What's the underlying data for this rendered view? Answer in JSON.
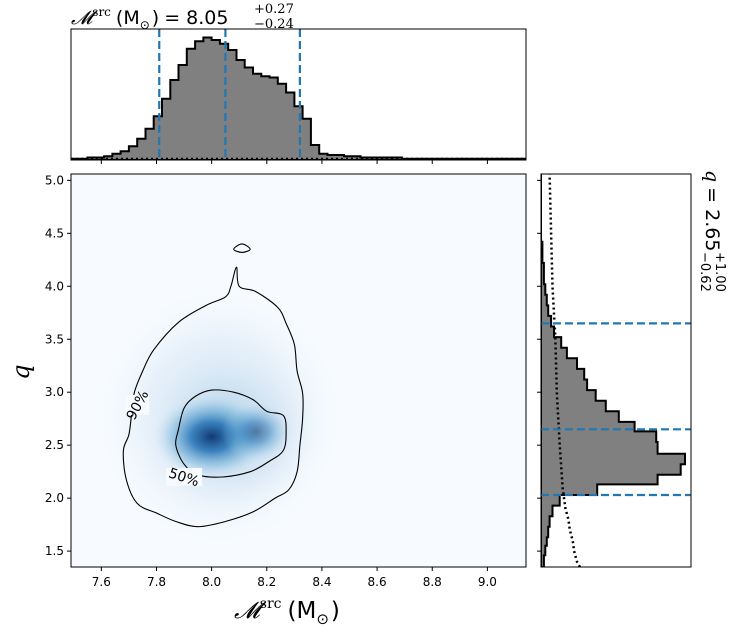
{
  "chart_data": {
    "type": "corner-2d-posterior",
    "xlabel_symbol": "𝓜",
    "xlabel_sup": "src",
    "xlabel_unit": "(M",
    "xlabel_unit_sub": "⊙",
    "xlabel_unit_close": ")",
    "ylabel": "q",
    "xlim": [
      7.49,
      9.14
    ],
    "ylim": [
      1.35,
      5.06
    ],
    "x_ticks": [
      7.6,
      7.8,
      8.0,
      8.2,
      8.4,
      8.6,
      8.8,
      9.0
    ],
    "x_tick_labels": [
      "7.6",
      "7.8",
      "8.0",
      "8.2",
      "8.4",
      "8.6",
      "8.8",
      "9.0"
    ],
    "y_ticks": [
      1.5,
      2.0,
      2.5,
      3.0,
      3.5,
      4.0,
      4.5,
      5.0
    ],
    "y_tick_labels": [
      "1.5",
      "2.0",
      "2.5",
      "3.0",
      "3.5",
      "4.0",
      "4.5",
      "5.0"
    ],
    "top_annotation": {
      "prefix": "𝓜",
      "sup": "src",
      "unit": "(M",
      "unit_sub": "⊙",
      "unit_close": ")",
      "value": "= 8.05",
      "plus": "+0.27",
      "minus": "−0.24"
    },
    "right_annotation": {
      "prefix": "q",
      "value": "= 2.65",
      "plus": "+1.00",
      "minus": "−0.62"
    },
    "contour_labels": [
      "90%",
      "50%"
    ],
    "chirp_mass_quantiles": [
      7.81,
      8.05,
      8.32
    ],
    "mass_ratio_quantiles": [
      2.03,
      2.65,
      3.65
    ],
    "chirp_mass_histogram": {
      "edges": [
        7.49,
        7.52,
        7.55,
        7.58,
        7.61,
        7.64,
        7.67,
        7.7,
        7.73,
        7.76,
        7.79,
        7.82,
        7.85,
        7.88,
        7.91,
        7.94,
        7.97,
        8.0,
        8.03,
        8.06,
        8.09,
        8.12,
        8.15,
        8.18,
        8.21,
        8.24,
        8.27,
        8.3,
        8.33,
        8.36,
        8.39,
        8.42,
        8.45,
        8.48,
        8.51,
        8.54,
        8.57,
        8.6,
        8.63,
        8.66,
        8.69,
        8.72,
        8.75,
        8.78,
        8.81,
        8.84,
        8.87,
        8.9,
        8.93,
        8.96,
        8.99,
        9.02,
        9.05,
        9.08,
        9.11,
        9.14
      ],
      "density": [
        0.01,
        0.01,
        0.02,
        0.02,
        0.03,
        0.05,
        0.07,
        0.11,
        0.17,
        0.25,
        0.35,
        0.49,
        0.64,
        0.76,
        0.89,
        0.95,
        0.98,
        0.96,
        0.93,
        0.88,
        0.8,
        0.74,
        0.69,
        0.67,
        0.66,
        0.61,
        0.54,
        0.43,
        0.33,
        0.12,
        0.05,
        0.04,
        0.04,
        0.03,
        0.03,
        0.02,
        0.02,
        0.02,
        0.02,
        0.02,
        0.01,
        0.01,
        0.01,
        0.01,
        0.01,
        0.01,
        0.01,
        0.01,
        0.01,
        0.01,
        0.01,
        0.01,
        0.01,
        0.01,
        0.01
      ],
      "prior_density_level": 0.01
    },
    "mass_ratio_histogram": {
      "edges": [
        1.35,
        1.46,
        1.55,
        1.63,
        1.73,
        1.83,
        1.93,
        2.03,
        2.13,
        2.22,
        2.32,
        2.42,
        2.53,
        2.63,
        2.72,
        2.82,
        2.92,
        3.02,
        3.12,
        3.22,
        3.32,
        3.42,
        3.52,
        3.62,
        3.72,
        3.82,
        3.92,
        4.02,
        4.12,
        4.22,
        4.32,
        4.42,
        4.52,
        4.62,
        4.72,
        4.82,
        4.92,
        5.06
      ],
      "density": [
        0.02,
        0.03,
        0.04,
        0.05,
        0.06,
        0.08,
        0.13,
        0.39,
        0.81,
        0.97,
        1.0,
        0.81,
        0.8,
        0.65,
        0.54,
        0.45,
        0.38,
        0.32,
        0.3,
        0.25,
        0.18,
        0.14,
        0.09,
        0.07,
        0.05,
        0.04,
        0.03,
        0.02,
        0.02,
        0.01,
        0.01,
        0.0,
        0.0,
        0.0,
        0.0,
        0.0,
        0.0
      ],
      "prior_curve": [
        [
          1.35,
          0.27
        ],
        [
          1.4,
          0.25
        ],
        [
          1.5,
          0.23
        ],
        [
          1.6,
          0.22
        ],
        [
          1.7,
          0.2
        ],
        [
          1.8,
          0.19
        ],
        [
          1.9,
          0.17
        ],
        [
          2.0,
          0.16
        ],
        [
          2.1,
          0.15
        ],
        [
          2.3,
          0.14
        ],
        [
          2.5,
          0.13
        ],
        [
          3.0,
          0.11
        ],
        [
          3.5,
          0.1
        ],
        [
          4.0,
          0.08
        ],
        [
          4.5,
          0.07
        ],
        [
          5.06,
          0.06
        ]
      ]
    },
    "posterior_2d": {
      "peak": [
        8.0,
        2.58
      ],
      "contour_90": [
        [
          7.79,
          3.4
        ],
        [
          7.88,
          3.66
        ],
        [
          7.98,
          3.82
        ],
        [
          8.05,
          3.9
        ],
        [
          8.07,
          4.0
        ],
        [
          8.09,
          4.18
        ],
        [
          8.1,
          4.0
        ],
        [
          8.16,
          3.95
        ],
        [
          8.24,
          3.8
        ],
        [
          8.27,
          3.65
        ],
        [
          8.3,
          3.45
        ],
        [
          8.31,
          3.2
        ],
        [
          8.33,
          2.99
        ],
        [
          8.33,
          2.75
        ],
        [
          8.32,
          2.5
        ],
        [
          8.31,
          2.25
        ],
        [
          8.28,
          2.08
        ],
        [
          8.23,
          2.0
        ],
        [
          8.15,
          1.87
        ],
        [
          8.05,
          1.78
        ],
        [
          7.95,
          1.73
        ],
        [
          7.87,
          1.78
        ],
        [
          7.8,
          1.86
        ],
        [
          7.73,
          1.95
        ],
        [
          7.69,
          2.18
        ],
        [
          7.68,
          2.45
        ],
        [
          7.7,
          2.6
        ],
        [
          7.71,
          2.8
        ],
        [
          7.72,
          3.0
        ],
        [
          7.75,
          3.2
        ]
      ],
      "contour_90_island": [
        [
          8.08,
          4.35
        ],
        [
          8.11,
          4.4
        ],
        [
          8.14,
          4.35
        ],
        [
          8.11,
          4.32
        ]
      ],
      "contour_50": [
        [
          7.87,
          2.5
        ],
        [
          7.88,
          2.65
        ],
        [
          7.9,
          2.85
        ],
        [
          7.94,
          2.96
        ],
        [
          8.0,
          3.02
        ],
        [
          8.08,
          3.0
        ],
        [
          8.15,
          2.93
        ],
        [
          8.2,
          2.82
        ],
        [
          8.26,
          2.78
        ],
        [
          8.27,
          2.62
        ],
        [
          8.26,
          2.45
        ],
        [
          8.21,
          2.35
        ],
        [
          8.14,
          2.25
        ],
        [
          8.04,
          2.2
        ],
        [
          7.95,
          2.22
        ],
        [
          7.9,
          2.32
        ]
      ]
    }
  }
}
